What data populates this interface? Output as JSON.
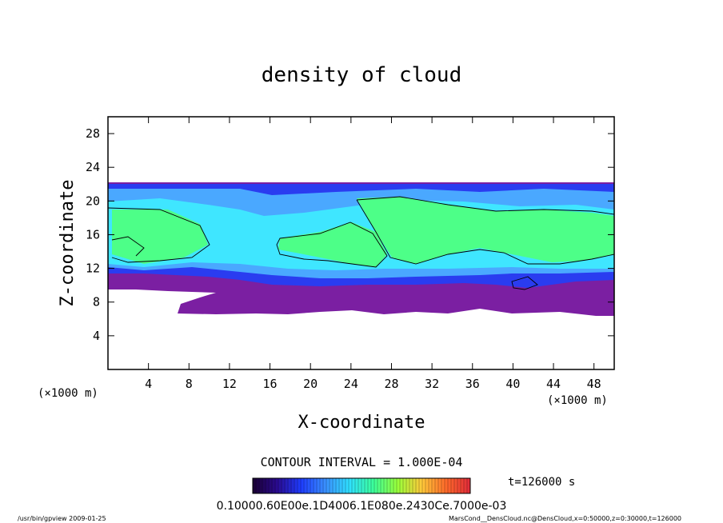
{
  "chart_data": {
    "type": "heatmap",
    "title": "density of cloud",
    "xlabel": "X-coordinate",
    "ylabel": "Z-coordinate",
    "x_unit": "(×1000 m)",
    "y_unit": "(×1000 m)",
    "xlim": [
      0,
      50
    ],
    "ylim": [
      0,
      30
    ],
    "x_ticks": [
      4,
      8,
      12,
      16,
      20,
      24,
      28,
      32,
      36,
      40,
      44,
      48
    ],
    "y_ticks": [
      4,
      8,
      12,
      16,
      20,
      24,
      28
    ],
    "cloud_layer_z_range": [
      7,
      22
    ],
    "contour_interval_text": "CONTOUR INTERVAL = 1.000E-04",
    "time_label": "t=126000 s",
    "colorbar_tick_text": "0.10000.60E00e.1D4006.1E080e.2430Ce.7000e-03",
    "colorbar_colors": [
      "#1a0033",
      "#2a0a8f",
      "#1e3cff",
      "#3a8fff",
      "#2fe0ff",
      "#3cff9a",
      "#9aff3a",
      "#ffc83a",
      "#ff6a2a",
      "#e02a3a"
    ],
    "layer_colors": {
      "outer": "#7b1fa2",
      "blue": "#2a3cf0",
      "light_blue": "#4aa8ff",
      "cyan": "#3fe6ff",
      "green": "#4dff88"
    },
    "footer_left": "/usr/bin/gpview   2009-01-25",
    "footer_right": "MarsCond__DensCloud.nc@DensCloud,x=0:50000,z=0:30000,t=126000"
  }
}
